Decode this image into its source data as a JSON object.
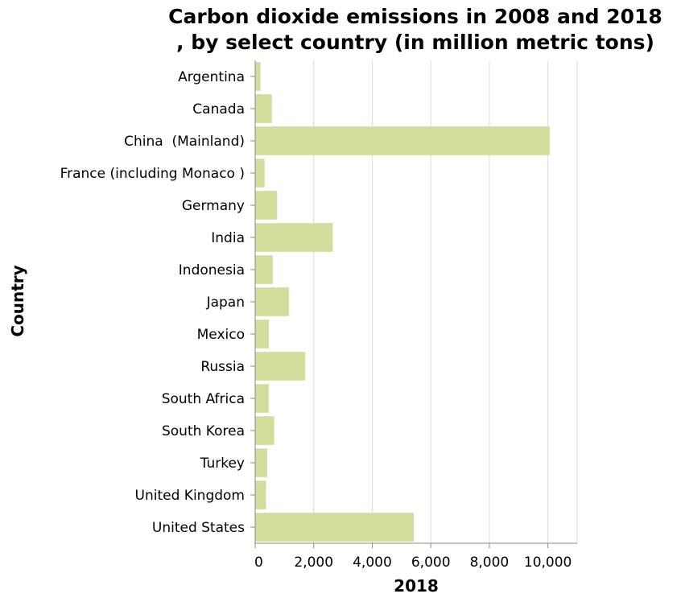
{
  "chart_data": {
    "type": "bar",
    "orientation": "horizontal",
    "title_lines": [
      "Carbon dioxide emissions in 2008 and 2018",
      ", by select country (in million metric tons)"
    ],
    "xlabel": "2018",
    "ylabel": "Country",
    "xlim": [
      0,
      11000
    ],
    "x_ticks": [
      0,
      2000,
      4000,
      6000,
      8000,
      10000
    ],
    "x_tick_labels": [
      "0",
      "2,000",
      "4,000",
      "6,000",
      "8,000",
      "10,000"
    ],
    "grid": true,
    "bar_color": "#d2dd9b",
    "categories": [
      "Argentina",
      "Canada",
      "China  (Mainland)",
      "France (including Monaco )",
      "Germany",
      "India",
      "Indonesia",
      "Japan",
      "Mexico",
      "Russia",
      "South Africa",
      "South Korea",
      "Turkey",
      "United Kingdom",
      "United States"
    ],
    "values": [
      180,
      570,
      10060,
      320,
      750,
      2650,
      600,
      1150,
      470,
      1710,
      460,
      650,
      410,
      370,
      5420
    ]
  }
}
